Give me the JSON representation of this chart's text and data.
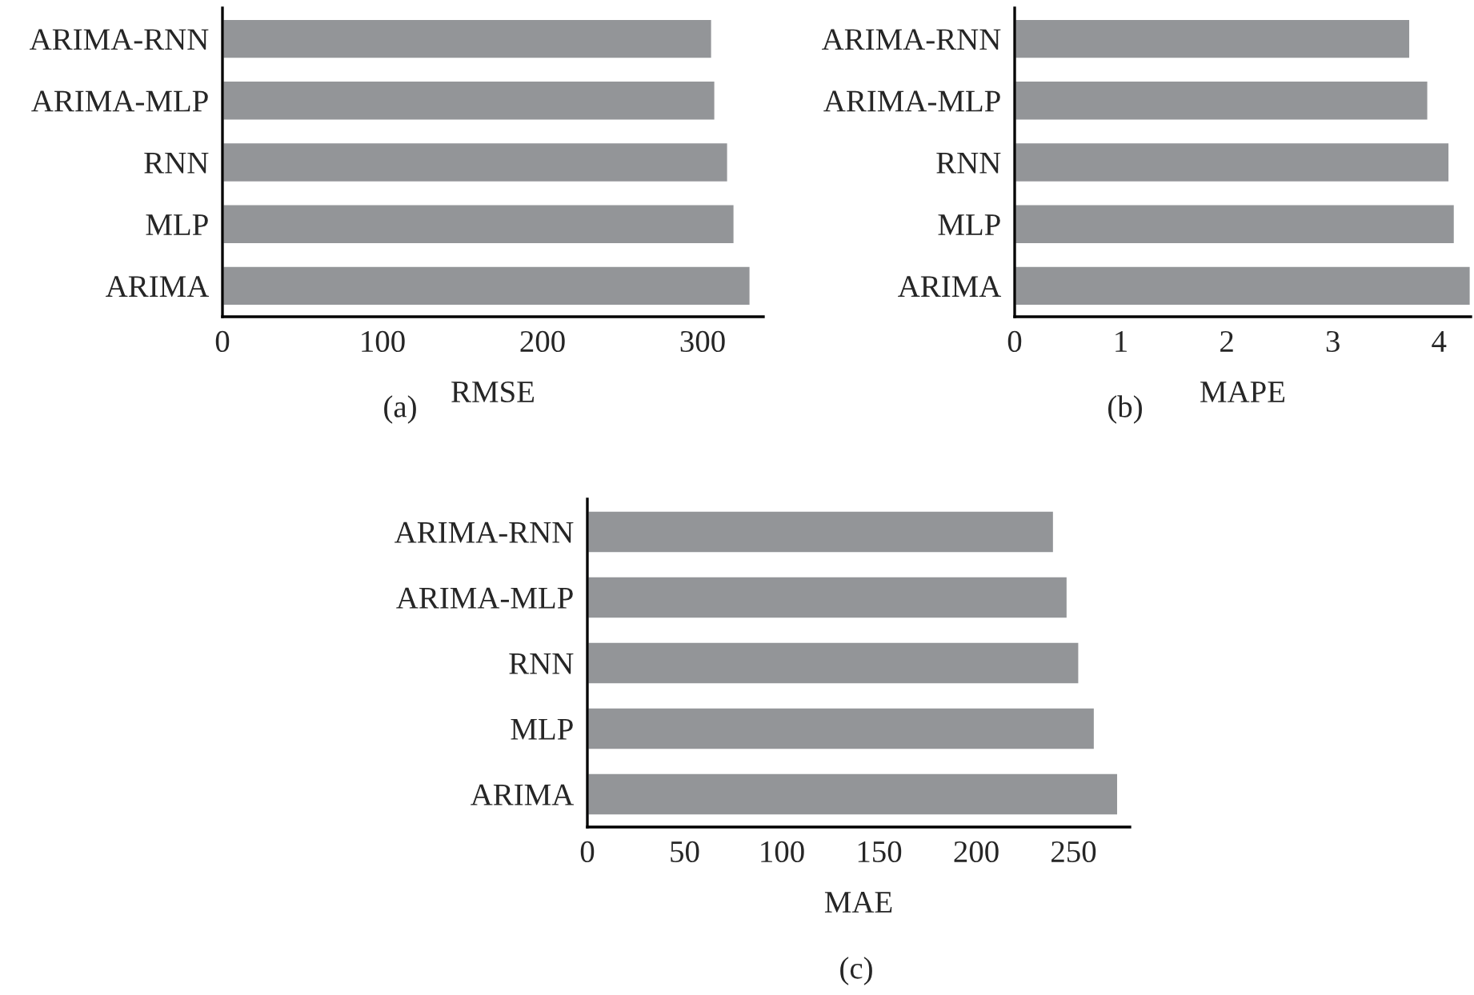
{
  "chart_data": [
    {
      "type": "bar",
      "orientation": "horizontal",
      "categories": [
        "ARIMA-RNN",
        "ARIMA-MLP",
        "RNN",
        "MLP",
        "ARIMA"
      ],
      "values": [
        306,
        308,
        316,
        320,
        330
      ],
      "color": "#939598",
      "xlabel": "RMSE",
      "xlim": [
        0,
        338
      ],
      "xticks": [
        0,
        100,
        200,
        300
      ],
      "grid": false,
      "annotations": [
        "(a)"
      ]
    },
    {
      "type": "bar",
      "orientation": "horizontal",
      "categories": [
        "ARIMA-RNN",
        "ARIMA-MLP",
        "RNN",
        "MLP",
        "ARIMA"
      ],
      "values": [
        3.73,
        3.9,
        4.1,
        4.15,
        4.3
      ],
      "color": "#939598",
      "xlabel": "MAPE",
      "xlim": [
        0,
        4.3
      ],
      "xticks": [
        0,
        1,
        2,
        3,
        4
      ],
      "grid": false,
      "annotations": [
        "(b)"
      ]
    },
    {
      "type": "bar",
      "orientation": "horizontal",
      "categories": [
        "ARIMA-RNN",
        "ARIMA-MLP",
        "RNN",
        "MLP",
        "ARIMA"
      ],
      "values": [
        240,
        247,
        253,
        261,
        273
      ],
      "color": "#939598",
      "xlabel": "MAE",
      "xlim": [
        0,
        279
      ],
      "xticks": [
        0,
        50,
        100,
        150,
        200,
        250
      ],
      "grid": false,
      "annotations": [
        "(c)"
      ]
    }
  ]
}
